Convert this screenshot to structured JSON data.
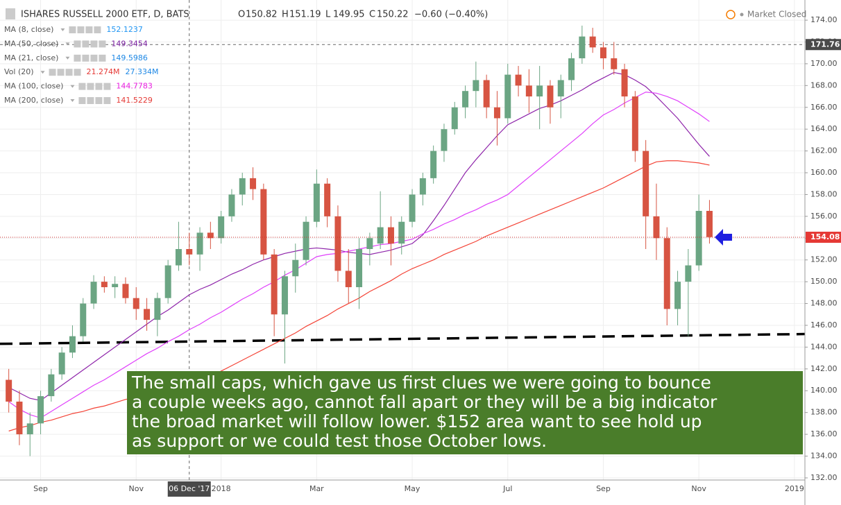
{
  "header": {
    "symbol": "ISHARES RUSSELL 2000 ETF, D, BATS",
    "ohlc": [
      {
        "label": "O",
        "value": 150.82
      },
      {
        "label": "H",
        "value": 151.19
      },
      {
        "label": "L",
        "value": 149.95
      },
      {
        "label": "C",
        "value": 150.22
      }
    ],
    "change": "−0.60 (−0.40%)",
    "status": "Market Closed"
  },
  "annotation": [
    "The small caps, which gave us first clues we were going to bounce",
    "a couple weeks ago, cannot fall apart or they will be a big indicator",
    "the broad market will follow lower. $152 area want to see hold up",
    "as support or we could test those October lows."
  ],
  "chart_data": {
    "type": "candlestick",
    "categories": [
      null,
      null,
      null,
      "Sep",
      null,
      null,
      null,
      null,
      null,
      null,
      null,
      null,
      "Nov",
      null,
      null,
      null,
      null,
      "06 Dec '17",
      null,
      null,
      "2018",
      null,
      null,
      null,
      null,
      null,
      null,
      null,
      null,
      "Mar",
      null,
      null,
      null,
      null,
      null,
      null,
      null,
      null,
      "May",
      null,
      null,
      null,
      null,
      null,
      null,
      null,
      null,
      "Jul",
      null,
      null,
      null,
      null,
      null,
      null,
      null,
      null,
      "Sep",
      null,
      null,
      null,
      null,
      null,
      null,
      null,
      null,
      "Nov",
      null,
      null,
      null,
      null,
      null,
      null,
      null,
      null,
      "2019"
    ],
    "open": [
      141,
      139,
      136,
      137,
      139.5,
      141.5,
      143.5,
      145,
      148,
      150,
      149.5,
      149.8,
      148.5,
      147.5,
      146.5,
      148.5,
      151.5,
      153,
      152.5,
      154.5,
      154,
      156,
      158,
      159.5,
      158.5,
      152.5,
      147,
      150.5,
      152,
      155.5,
      159,
      156,
      151,
      149.5,
      153,
      153.5,
      155,
      153.5,
      155.5,
      158,
      159.5,
      162,
      164,
      166,
      167.5,
      168.5,
      166,
      165,
      169,
      168,
      167,
      168,
      167,
      168.5,
      170.5,
      172.5,
      171.5,
      170.5,
      169.5,
      167,
      162,
      156,
      154,
      147.5,
      150,
      151.5,
      156.5,
      null,
      null,
      null,
      null,
      null,
      null,
      null,
      null
    ],
    "high": [
      142,
      140,
      138,
      140,
      142,
      144,
      146,
      148.5,
      150.6,
      150.5,
      150.5,
      150.4,
      149.5,
      148.5,
      149,
      152,
      155.5,
      154.5,
      155,
      155.5,
      156.5,
      158.5,
      160,
      160.5,
      159,
      153,
      151,
      153.5,
      156,
      160.3,
      159.5,
      157,
      153,
      154,
      154.5,
      158.3,
      156,
      156,
      158.5,
      160,
      162.5,
      164.5,
      166.5,
      168,
      170.2,
      169,
      167.5,
      170,
      169.8,
      169.5,
      169.8,
      168.5,
      169,
      171,
      173.5,
      173.3,
      172,
      172,
      170,
      167.5,
      163,
      159,
      155,
      151,
      153,
      158,
      157.5,
      null,
      null,
      null,
      null,
      null,
      null,
      null,
      null
    ],
    "low": [
      138,
      135,
      134,
      136,
      139,
      141,
      143,
      144.5,
      147.5,
      149,
      148.5,
      148,
      146.5,
      145.5,
      145,
      148,
      151,
      151.5,
      151,
      153,
      153.5,
      155.5,
      157,
      157.5,
      152,
      145,
      142.5,
      149,
      151.5,
      155,
      155,
      150,
      148,
      147.5,
      151.5,
      153,
      151.5,
      152.5,
      155,
      157,
      159,
      161,
      163.5,
      165,
      166,
      165,
      162.5,
      164.5,
      167,
      165.5,
      164,
      164.5,
      165,
      167.5,
      170,
      171,
      169.5,
      169,
      166,
      161,
      153,
      152,
      146,
      146,
      145,
      151,
      153.5,
      null,
      null,
      null,
      null,
      null,
      null,
      null,
      null
    ],
    "close": [
      139,
      136,
      137,
      139.5,
      141.5,
      143.5,
      145,
      148,
      150,
      149.5,
      149.8,
      148.5,
      147.5,
      146.5,
      148.5,
      151.5,
      153,
      152.5,
      154.5,
      154,
      156,
      158,
      159.5,
      158.5,
      152.5,
      147,
      150.5,
      152,
      155.5,
      159,
      156,
      151,
      149.5,
      153,
      154,
      155,
      153.5,
      155.5,
      158,
      159.5,
      162,
      164,
      166,
      167.5,
      168.5,
      166,
      165,
      169,
      168,
      167,
      168,
      166,
      168.5,
      170.5,
      172.5,
      171.5,
      170.5,
      169.5,
      167,
      162,
      156,
      154,
      147.5,
      150,
      151.5,
      156.5,
      154.1,
      null,
      null,
      null,
      null,
      null,
      null,
      null,
      null
    ],
    "up_color": "#6ba583",
    "down_color": "#d75442",
    "indicators": [
      {
        "name": "MA (8, close)",
        "readings": [
          {
            "value": 152.1237,
            "color": "#2196f3"
          }
        ]
      },
      {
        "name": "MA (50, close)",
        "readings": [
          {
            "value": 149.3454,
            "color": "#7b1fa2"
          }
        ],
        "color": "#8e24aa",
        "values": [
          140.3,
          139.8,
          139.3,
          139.1,
          139.8,
          140.5,
          141.2,
          141.9,
          142.6,
          143.3,
          144.0,
          144.7,
          145.4,
          146.1,
          146.8,
          147.4,
          148.1,
          148.8,
          149.3,
          149.7,
          150.2,
          150.7,
          151.1,
          151.6,
          152.0,
          152.3,
          152.6,
          152.8,
          153.0,
          153.1,
          153.0,
          152.9,
          152.7,
          152.6,
          152.5,
          152.7,
          152.9,
          153.2,
          153.5,
          154.3,
          155.6,
          157.0,
          158.5,
          160.0,
          161.2,
          162.3,
          163.4,
          164.4,
          164.9,
          165.4,
          165.9,
          166.2,
          166.6,
          167.1,
          167.6,
          168.2,
          168.7,
          169.2,
          169.0,
          168.5,
          167.9,
          167.0,
          166.0,
          165.0,
          163.8,
          162.6,
          161.5,
          null,
          null,
          null,
          null,
          null,
          null,
          null,
          null
        ]
      },
      {
        "name": "MA (21, close)",
        "readings": [
          {
            "value": 149.5986,
            "color": "#1e88e5"
          }
        ]
      },
      {
        "name": "Vol (20)",
        "readings": [
          {
            "value": "21.274M",
            "color": "#e53935"
          },
          {
            "value": "27.334M",
            "color": "#1e88e5"
          }
        ]
      },
      {
        "name": "MA (100, close)",
        "readings": [
          {
            "value": 144.7783,
            "color": "#e91ee0"
          }
        ],
        "color": "#e040fb",
        "values": [
          139,
          138.3,
          137.8,
          137.5,
          138.1,
          138.7,
          139.3,
          139.9,
          140.5,
          141.0,
          141.6,
          142.2,
          142.8,
          143.4,
          143.9,
          144.5,
          145.0,
          145.6,
          146.1,
          146.7,
          147.2,
          147.8,
          148.4,
          148.9,
          149.5,
          150.0,
          150.6,
          151.1,
          151.7,
          152.3,
          152.5,
          152.6,
          152.8,
          153.0,
          153.2,
          153.4,
          153.5,
          153.7,
          153.9,
          154.4,
          154.8,
          155.3,
          155.7,
          156.2,
          156.6,
          157.1,
          157.5,
          158.0,
          158.8,
          159.6,
          160.4,
          161.2,
          162.0,
          162.8,
          163.6,
          164.5,
          165.3,
          165.8,
          166.4,
          166.9,
          167.4,
          167.3,
          167.0,
          166.6,
          166.0,
          165.4,
          164.7,
          null,
          null,
          null,
          null,
          null,
          null,
          null,
          null
        ]
      },
      {
        "name": "MA (200, close)",
        "readings": [
          {
            "value": 141.5229,
            "color": "#e53935"
          }
        ],
        "color": "#f44336",
        "values": [
          136.3,
          136.6,
          136.8,
          137.1,
          137.3,
          137.6,
          137.9,
          138.1,
          138.4,
          138.6,
          138.9,
          139.2,
          139.4,
          139.7,
          139.9,
          140.2,
          140.5,
          140.7,
          141.0,
          141.3,
          141.8,
          142.3,
          142.8,
          143.3,
          143.8,
          144.3,
          144.8,
          145.3,
          145.9,
          146.4,
          146.9,
          147.5,
          148.0,
          148.5,
          149.1,
          149.6,
          150.1,
          150.7,
          151.2,
          151.6,
          152.0,
          152.5,
          152.9,
          153.3,
          153.7,
          154.2,
          154.6,
          155.0,
          155.4,
          155.8,
          156.2,
          156.6,
          157.0,
          157.4,
          157.8,
          158.2,
          158.6,
          159.1,
          159.6,
          160.1,
          160.6,
          161.0,
          161.1,
          161.1,
          161.0,
          160.9,
          160.7,
          null,
          null,
          null,
          null,
          null,
          null,
          null,
          null
        ]
      }
    ],
    "trendline": [
      144.3,
      145.2
    ],
    "last_price": 154.08,
    "crosshair_price": 171.76,
    "crosshair_date": "06 Dec '17",
    "ylim": [
      131.55,
      175.85
    ],
    "yticks": [
      {
        "value": 132,
        "label": "132.00"
      },
      {
        "value": 134,
        "label": "134.00"
      },
      {
        "value": 136,
        "label": "136.00"
      },
      {
        "value": 138,
        "label": "138.00"
      },
      {
        "value": 140,
        "label": "140.00"
      },
      {
        "value": 142,
        "label": "142.00"
      },
      {
        "value": 144,
        "label": "144.00"
      },
      {
        "value": 146,
        "label": "146.00"
      },
      {
        "value": 148,
        "label": "148.00"
      },
      {
        "value": 150,
        "label": "150.00"
      },
      {
        "value": 152,
        "label": "152.00"
      },
      {
        "value": 154,
        "label": "154.00"
      },
      {
        "value": 156,
        "label": "156.00"
      },
      {
        "value": 158,
        "label": "158.00"
      },
      {
        "value": 160,
        "label": "160.00"
      },
      {
        "value": 162,
        "label": "162.00"
      },
      {
        "value": 164,
        "label": "164.00"
      },
      {
        "value": 166,
        "label": "166.00"
      },
      {
        "value": 168,
        "label": "168.00"
      },
      {
        "value": 170,
        "label": "170.00"
      },
      {
        "value": 172,
        "label": "172.00"
      },
      {
        "value": 174,
        "label": "174.00"
      }
    ],
    "grid": true
  }
}
